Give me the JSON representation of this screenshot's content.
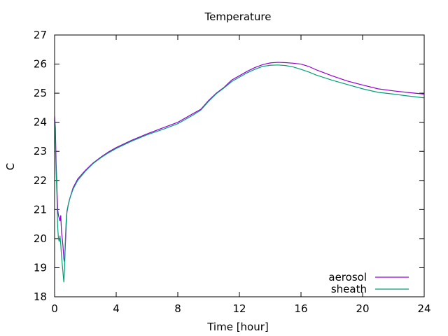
{
  "chart_data": {
    "type": "line",
    "title": "Temperature",
    "xlabel": "Time [hour]",
    "ylabel": "C",
    "xlim": [
      0,
      24
    ],
    "ylim": [
      18,
      27
    ],
    "xticks": [
      0,
      4,
      8,
      12,
      16,
      20,
      24
    ],
    "yticks": [
      18,
      19,
      20,
      21,
      22,
      23,
      24,
      25,
      26,
      27
    ],
    "grid": false,
    "legend_position": "bottom-right",
    "series": [
      {
        "name": "aerosol",
        "color": "#9400d3",
        "x": [
          0,
          0.05,
          0.1,
          0.15,
          0.2,
          0.25,
          0.3,
          0.35,
          0.4,
          0.45,
          0.5,
          0.55,
          0.6,
          0.65,
          0.7,
          0.75,
          0.8,
          0.9,
          1.0,
          1.2,
          1.5,
          2.0,
          2.5,
          3.0,
          3.5,
          4.0,
          5.0,
          6.0,
          7.0,
          8.0,
          9.0,
          9.5,
          10.0,
          10.5,
          11.0,
          11.5,
          12.0,
          12.5,
          13.0,
          13.5,
          14.0,
          14.5,
          15.0,
          15.5,
          16.0,
          16.5,
          17.0,
          18.0,
          19.0,
          20.0,
          21.0,
          22.0,
          23.0,
          24.0
        ],
        "y": [
          24.2,
          23.8,
          22.6,
          21.8,
          21.0,
          20.8,
          20.7,
          20.6,
          20.8,
          20.2,
          20.0,
          19.7,
          19.3,
          19.2,
          19.8,
          20.4,
          20.9,
          21.2,
          21.4,
          21.75,
          22.05,
          22.35,
          22.6,
          22.8,
          22.98,
          23.13,
          23.38,
          23.6,
          23.8,
          24.0,
          24.3,
          24.45,
          24.75,
          25.0,
          25.2,
          25.45,
          25.6,
          25.75,
          25.88,
          25.98,
          26.04,
          26.06,
          26.05,
          26.03,
          26.0,
          25.92,
          25.8,
          25.6,
          25.42,
          25.28,
          25.15,
          25.08,
          25.02,
          24.97
        ]
      },
      {
        "name": "sheath",
        "color": "#009e73",
        "x": [
          0,
          0.05,
          0.1,
          0.15,
          0.2,
          0.25,
          0.3,
          0.35,
          0.4,
          0.45,
          0.5,
          0.55,
          0.6,
          0.65,
          0.7,
          0.75,
          0.8,
          0.9,
          1.0,
          1.2,
          1.5,
          2.0,
          2.5,
          3.0,
          3.5,
          4.0,
          5.0,
          6.0,
          7.0,
          8.0,
          9.0,
          9.5,
          10.0,
          10.5,
          11.0,
          11.5,
          12.0,
          12.5,
          13.0,
          13.5,
          14.0,
          14.5,
          15.0,
          15.5,
          16.0,
          16.5,
          17.0,
          18.0,
          19.0,
          20.0,
          21.0,
          22.0,
          23.0,
          24.0
        ],
        "y": [
          24.1,
          23.3,
          22.3,
          21.5,
          20.4,
          20.0,
          19.9,
          20.1,
          19.8,
          19.4,
          19.1,
          18.8,
          18.5,
          19.0,
          20.0,
          20.6,
          20.95,
          21.2,
          21.4,
          21.7,
          22.0,
          22.32,
          22.58,
          22.78,
          22.95,
          23.1,
          23.35,
          23.57,
          23.75,
          23.95,
          24.25,
          24.42,
          24.72,
          24.98,
          25.18,
          25.4,
          25.55,
          25.7,
          25.82,
          25.92,
          25.96,
          25.97,
          25.95,
          25.9,
          25.82,
          25.73,
          25.62,
          25.45,
          25.3,
          25.15,
          25.03,
          24.97,
          24.9,
          24.84
        ]
      }
    ]
  }
}
